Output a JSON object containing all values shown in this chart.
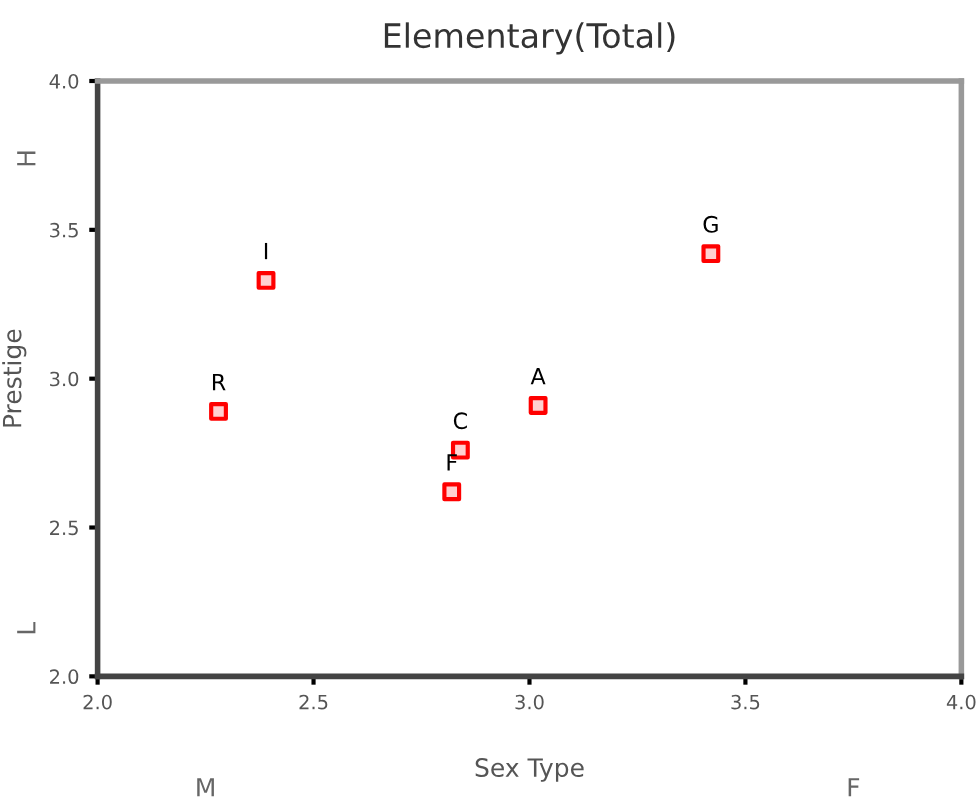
{
  "chart_data": {
    "type": "scatter",
    "title": "Elementary(Total)",
    "xlabel": "Sex Type",
    "ylabel": "Prestige",
    "x": [
      2.28,
      2.39,
      2.82,
      2.84,
      3.02,
      3.42
    ],
    "values": [
      2.89,
      3.33,
      2.62,
      2.76,
      2.91,
      3.42
    ],
    "color": "#ff0000",
    "marker": "square",
    "grid": false,
    "legend": false,
    "xlim": [
      2.0,
      4.0
    ],
    "ylim": [
      2.0,
      4.0
    ],
    "xticks": [
      {
        "value": 2.0,
        "label": "2.0"
      },
      {
        "value": 2.5,
        "label": "2.5"
      },
      {
        "value": 3.0,
        "label": "3.0"
      },
      {
        "value": 3.5,
        "label": "3.5"
      },
      {
        "value": 4.0,
        "label": "4.0"
      }
    ],
    "yticks": [
      {
        "value": 2.0,
        "label": "2.0"
      },
      {
        "value": 2.5,
        "label": "2.5"
      },
      {
        "value": 3.0,
        "label": "3.0"
      },
      {
        "value": 3.5,
        "label": "3.5"
      },
      {
        "value": 4.0,
        "label": "4.0"
      }
    ],
    "annotations": [
      {
        "text": "R",
        "x": 2.28,
        "y": 2.89
      },
      {
        "text": "I",
        "x": 2.39,
        "y": 3.33
      },
      {
        "text": "F",
        "x": 2.82,
        "y": 2.62
      },
      {
        "text": "C",
        "x": 2.84,
        "y": 2.76
      },
      {
        "text": "A",
        "x": 3.02,
        "y": 2.91
      },
      {
        "text": "G",
        "x": 3.42,
        "y": 3.42
      },
      "H",
      "L",
      "M",
      "F"
    ]
  }
}
